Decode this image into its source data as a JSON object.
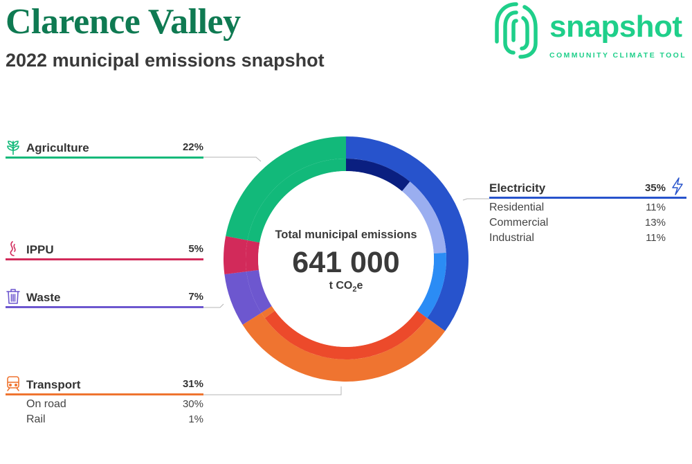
{
  "header": {
    "title": "Clarence Valley",
    "subtitle": "2022 municipal emissions snapshot"
  },
  "logo": {
    "word": "snapshot",
    "tagline": "COMMUNITY CLIMATE TOOL",
    "icon": "fingerprint-logo-icon"
  },
  "colors": {
    "title": "#0f7a52",
    "logo": "#1fcf8a",
    "agriculture": "#12b97a",
    "ippu": "#d22a5a",
    "waste": "#6d57cf",
    "transport": "#ef7430",
    "electricity": "#2753cc"
  },
  "center": {
    "title": "Total municipal emissions",
    "value": "641 000",
    "unit_prefix": "t CO",
    "unit_sub": "2",
    "unit_suffix": "e"
  },
  "chart_data": {
    "type": "donut",
    "title": "Total municipal emissions",
    "total": 641000,
    "unit": "t CO2e",
    "series": [
      {
        "name": "Electricity",
        "value": 35,
        "color": "#2753cc",
        "icon": "lightning-icon",
        "breakdown": [
          {
            "name": "Residential",
            "value": 11,
            "color": "#0a1f80"
          },
          {
            "name": "Commercial",
            "value": 13,
            "color": "#9aaef0"
          },
          {
            "name": "Industrial",
            "value": 11,
            "color": "#2b8cf5"
          }
        ]
      },
      {
        "name": "Transport",
        "value": 31,
        "color": "#ef7430",
        "icon": "train-icon",
        "breakdown": [
          {
            "name": "On road",
            "value": 30,
            "color": "#ec4a2b"
          },
          {
            "name": "Rail",
            "value": 1,
            "color": "#ef7430"
          }
        ]
      },
      {
        "name": "Waste",
        "value": 7,
        "color": "#6d57cf",
        "icon": "bin-icon",
        "breakdown": []
      },
      {
        "name": "IPPU",
        "value": 5,
        "color": "#d22a5a",
        "icon": "flame-icon",
        "breakdown": []
      },
      {
        "name": "Agriculture",
        "value": 22,
        "color": "#12b97a",
        "icon": "plant-icon",
        "breakdown": []
      }
    ]
  },
  "labels": {
    "agriculture": {
      "name": "Agriculture",
      "pct": "22%"
    },
    "ippu": {
      "name": "IPPU",
      "pct": "5%"
    },
    "waste": {
      "name": "Waste",
      "pct": "7%"
    },
    "transport": {
      "name": "Transport",
      "pct": "31%",
      "subs": [
        {
          "name": "On road",
          "pct": "30%"
        },
        {
          "name": "Rail",
          "pct": "1%"
        }
      ]
    },
    "electricity": {
      "name": "Electricity",
      "pct": "35%",
      "subs": [
        {
          "name": "Residential",
          "pct": "11%"
        },
        {
          "name": "Commercial",
          "pct": "13%"
        },
        {
          "name": "Industrial",
          "pct": "11%"
        }
      ]
    }
  }
}
